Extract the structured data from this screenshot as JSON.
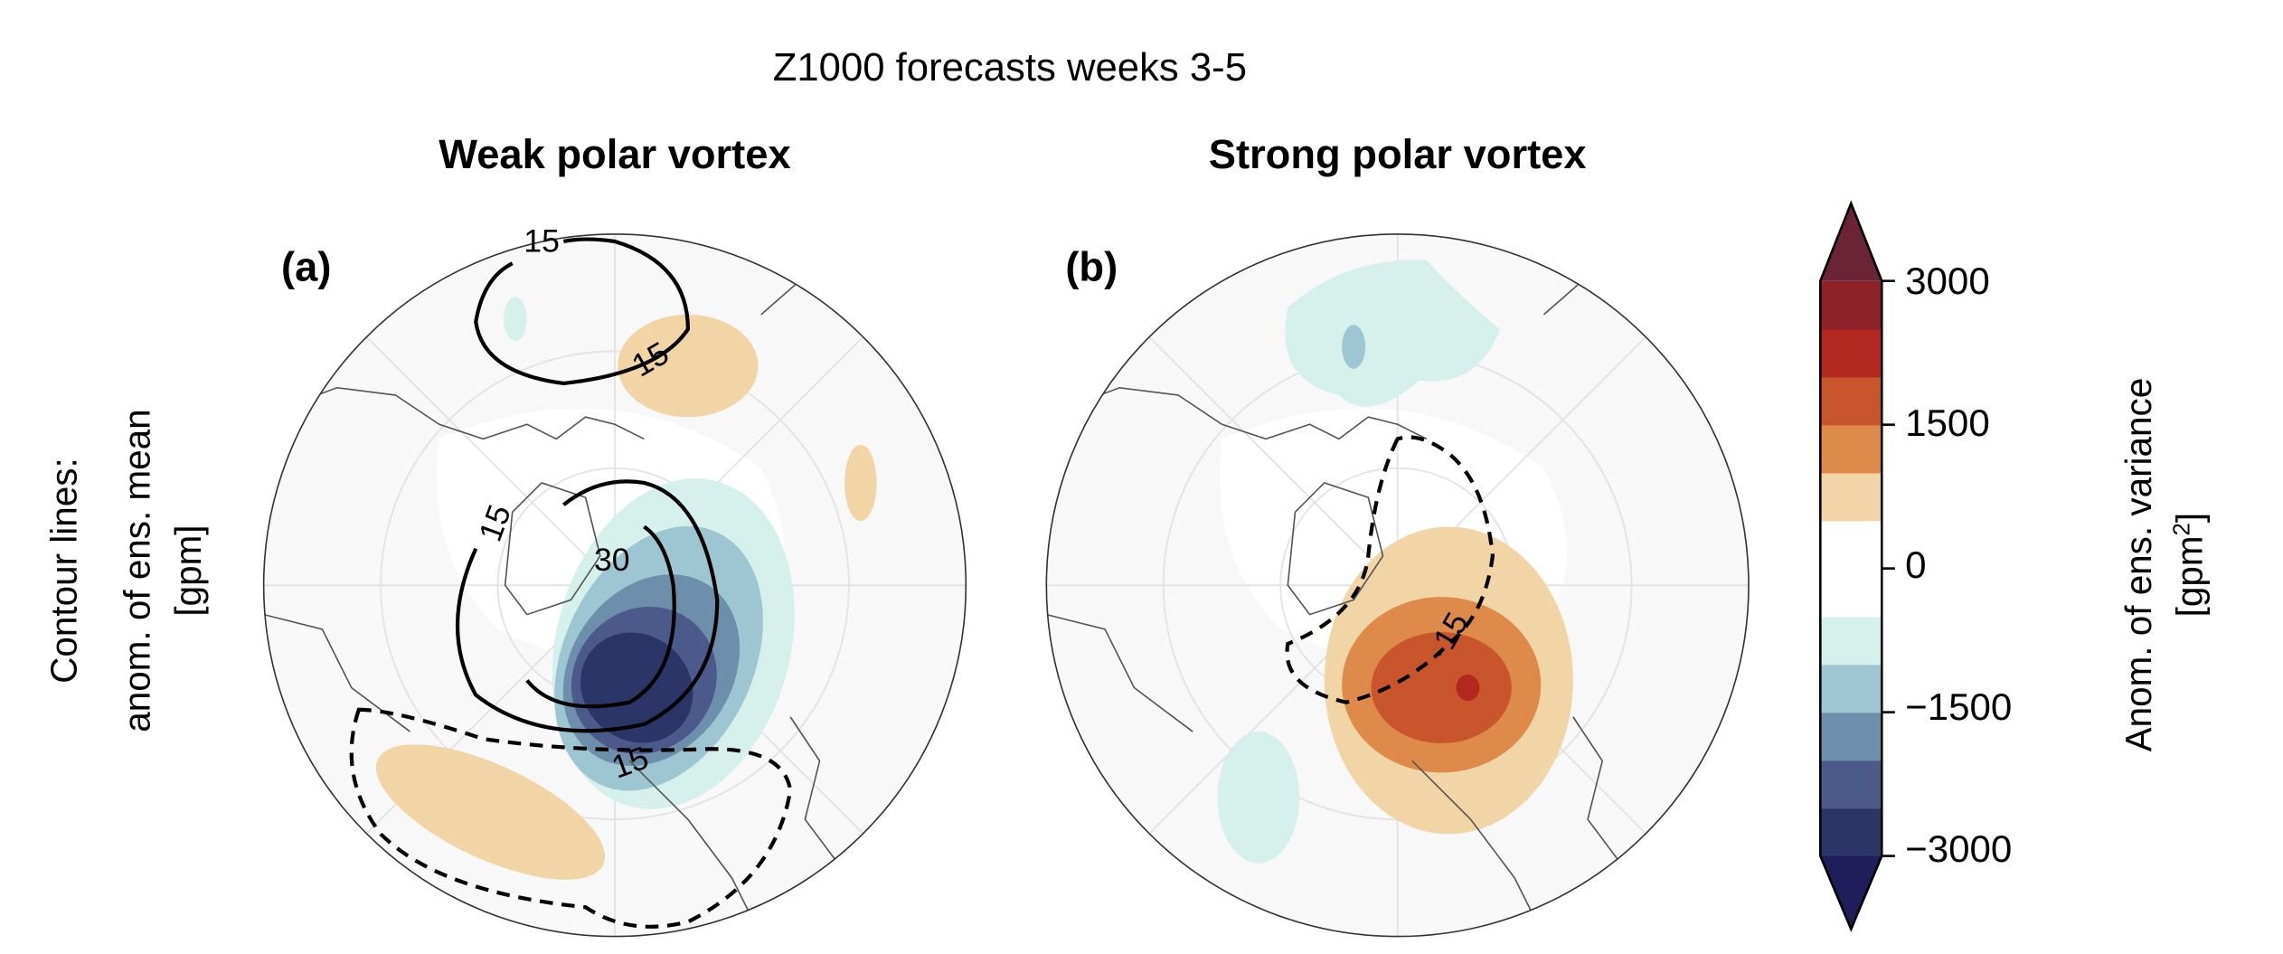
{
  "chart_data": {
    "type": "heatmap",
    "title": "Z1000 forecasts weeks 3-5",
    "ylabel": [
      "Contour lines:",
      "anom. of ens. mean",
      "[gpm]"
    ],
    "panels": [
      {
        "label": "(a)",
        "title": "Weak polar vortex",
        "contour_labels": [
          "15",
          "15",
          "15",
          "30",
          "15"
        ],
        "description_of_fill": "negative variance anomaly over North Atlantic/Scandinavia, positive over N. Pacific and Alaska"
      },
      {
        "label": "(b)",
        "title": "Strong polar vortex",
        "contour_labels": [
          "-15"
        ],
        "description_of_fill": "positive variance anomaly over Scandinavia/North Atlantic, weak negative over Pacific"
      }
    ],
    "colorbar": {
      "label": "Anom. of ens. variance",
      "unit": "[gpm",
      "unit_sup": "2",
      "unit_close": "]",
      "range": [
        -3000,
        3000
      ],
      "step": 500,
      "extend": "both",
      "ticks": [
        "3000",
        "1500",
        "0",
        "−1500",
        "−3000"
      ],
      "colors": [
        "#2c3568",
        "#4b5a8a",
        "#6e8fab",
        "#9ec6d2",
        "#d6f0ec",
        "#ffffff",
        "#ffffff",
        "#f2d5a6",
        "#dd8a4b",
        "#c8552c",
        "#b2281f",
        "#8d2229"
      ],
      "extend_low": "#1f1d5a",
      "extend_high": "#6a2436"
    }
  }
}
